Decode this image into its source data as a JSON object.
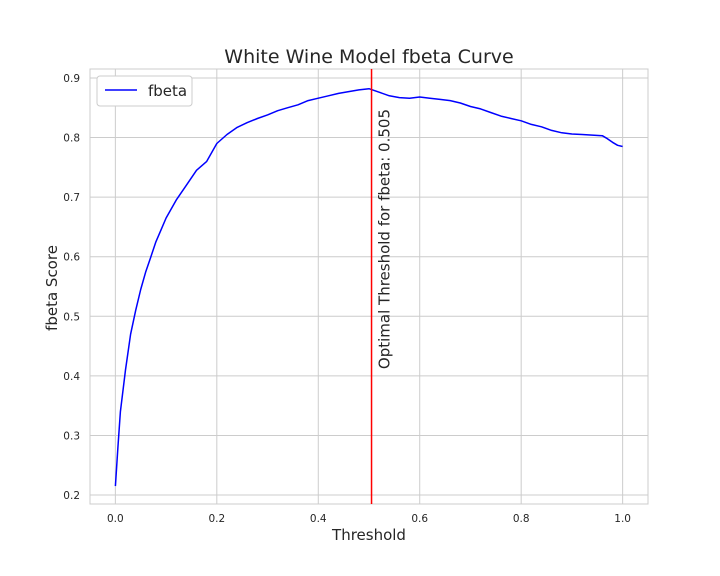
{
  "chart_data": {
    "type": "line",
    "title": "White Wine Model fbeta Curve",
    "xlabel": "Threshold",
    "ylabel": "fbeta Score",
    "xlim": [
      -0.05,
      1.05
    ],
    "ylim": [
      0.185,
      0.915
    ],
    "xticks": [
      "0.0",
      "0.2",
      "0.4",
      "0.6",
      "0.8",
      "1.0"
    ],
    "yticks": [
      "0.2",
      "0.3",
      "0.4",
      "0.5",
      "0.6",
      "0.7",
      "0.8",
      "0.9"
    ],
    "grid": true,
    "legend_position": "top-left",
    "series": [
      {
        "name": "fbeta",
        "color": "#0000ff",
        "x": [
          0.0,
          0.005,
          0.01,
          0.02,
          0.03,
          0.04,
          0.05,
          0.06,
          0.07,
          0.08,
          0.09,
          0.1,
          0.12,
          0.14,
          0.16,
          0.18,
          0.2,
          0.22,
          0.24,
          0.26,
          0.28,
          0.3,
          0.32,
          0.34,
          0.36,
          0.38,
          0.4,
          0.42,
          0.44,
          0.46,
          0.48,
          0.5,
          0.52,
          0.54,
          0.56,
          0.58,
          0.6,
          0.62,
          0.64,
          0.66,
          0.68,
          0.7,
          0.72,
          0.74,
          0.76,
          0.78,
          0.8,
          0.82,
          0.84,
          0.86,
          0.88,
          0.9,
          0.92,
          0.94,
          0.96,
          0.97,
          0.98,
          0.99,
          1.0
        ],
        "y": [
          0.215,
          0.28,
          0.34,
          0.41,
          0.47,
          0.51,
          0.545,
          0.575,
          0.6,
          0.625,
          0.645,
          0.665,
          0.695,
          0.72,
          0.745,
          0.76,
          0.79,
          0.805,
          0.817,
          0.825,
          0.832,
          0.838,
          0.845,
          0.85,
          0.855,
          0.862,
          0.866,
          0.87,
          0.874,
          0.877,
          0.88,
          0.882,
          0.876,
          0.87,
          0.867,
          0.866,
          0.868,
          0.866,
          0.864,
          0.862,
          0.858,
          0.852,
          0.848,
          0.842,
          0.836,
          0.832,
          0.828,
          0.822,
          0.818,
          0.812,
          0.808,
          0.806,
          0.805,
          0.804,
          0.803,
          0.798,
          0.792,
          0.787,
          0.785
        ]
      }
    ],
    "vline": {
      "x": 0.505,
      "color": "#ff0000",
      "label": "Optimal Threshold for fbeta: 0.505"
    }
  }
}
